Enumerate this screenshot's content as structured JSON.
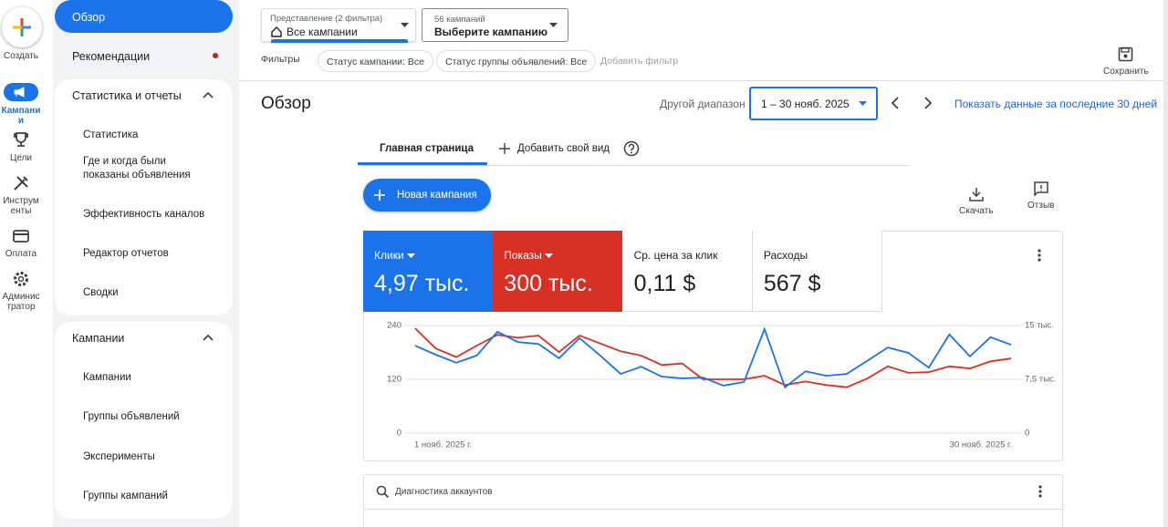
{
  "rail": {
    "create": "Создать",
    "items": [
      "Кампании",
      "Цели",
      "Инструменты",
      "Оплата",
      "Администратор"
    ]
  },
  "nav": {
    "overview": "Обзор",
    "recommendations": "Рекомендации",
    "sections": [
      {
        "title": "Статистика и отчеты",
        "items": [
          "Статистика",
          "Где и когда были показаны объявления",
          "Эффективность каналов",
          "Редактор отчетов",
          "Сводки"
        ]
      },
      {
        "title": "Кампании",
        "items": [
          "Кампании",
          "Группы объявлений",
          "Эксперименты",
          "Группы кампаний"
        ]
      }
    ]
  },
  "header": {
    "view_label": "Представление (2 фильтра)",
    "view_value": "Все кампании",
    "campaign_label": "56 кампаний",
    "campaign_value": "Выберите кампанию",
    "filters_label": "Фильтры",
    "filters": [
      "Статус кампании: Все",
      "Статус группы объявлений: Все"
    ],
    "add_filter": "Добавить фильтр",
    "save": "Сохранить"
  },
  "page": {
    "title": "Обзор",
    "range_label": "Другой диапазон",
    "range": "1 – 30 нояб. 2025",
    "last_30": "Показать данные за последние 30 дней"
  },
  "tabs": [
    "Главная страница",
    "Добавить свой вид"
  ],
  "actions": {
    "new_campaign": "Новая кампания",
    "download": "Скачать",
    "feedback": "Отзыв"
  },
  "metrics": [
    {
      "name": "Клики",
      "value": "4,97 тыс."
    },
    {
      "name": "Показы",
      "value": "300 тыс."
    },
    {
      "name": "Ср. цена за клик",
      "value": "0,11 $"
    },
    {
      "name": "Расходы",
      "value": "567 $"
    }
  ],
  "chart_data": {
    "type": "line",
    "x": [
      1,
      2,
      3,
      4,
      5,
      6,
      7,
      8,
      9,
      10,
      11,
      12,
      13,
      14,
      15,
      16,
      17,
      18,
      19,
      20,
      21,
      22,
      23,
      24,
      25,
      26,
      27,
      28,
      29,
      30
    ],
    "xlim": [
      1,
      30
    ],
    "xticks": [
      {
        "value": 1,
        "label": "1 нояб. 2025 г."
      },
      {
        "value": 30,
        "label": "30 нояб. 2025 г."
      }
    ],
    "ylim": [
      0,
      240
    ],
    "yticks": [
      0,
      120,
      240
    ],
    "y2lim": [
      0,
      15
    ],
    "y2ticks": [
      0,
      {
        "value": 7.5,
        "label": "7,5 тыс."
      },
      {
        "value": 15,
        "label": "15 тыс."
      }
    ],
    "grid": true,
    "series": [
      {
        "name": "Клики",
        "color": "#1a73e8",
        "values": [
          195,
          175,
          157,
          173,
          226,
          203,
          199,
          167,
          212,
          173,
          132,
          148,
          126,
          122,
          124,
          106,
          114,
          232,
          102,
          138,
          128,
          132,
          161,
          191,
          179,
          146,
          220,
          171,
          214,
          197
        ]
      },
      {
        "name": "Показы",
        "color": "#d93025",
        "axis": "y2",
        "values": [
          14.6,
          11.8,
          10.6,
          12.2,
          13.7,
          13.3,
          13.6,
          11.3,
          13.6,
          12.5,
          11.4,
          10.8,
          9.5,
          9.7,
          7.5,
          7.5,
          7.5,
          8.0,
          6.7,
          7.2,
          6.7,
          6.4,
          7.6,
          9.3,
          8.4,
          8.5,
          9.3,
          9.0,
          10.0,
          10.4
        ]
      }
    ]
  },
  "diagnostics": {
    "title": "Диагностика аккаунтов"
  }
}
